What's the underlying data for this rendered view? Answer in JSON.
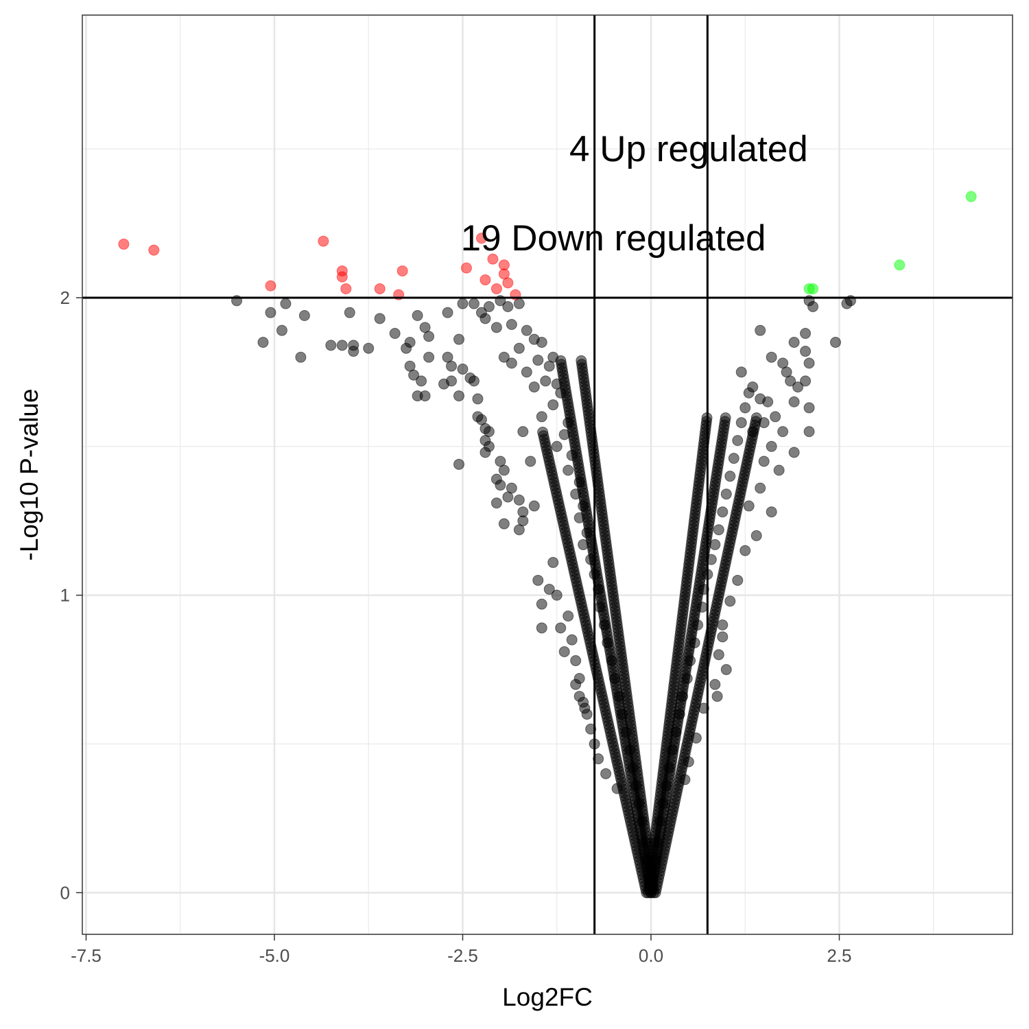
{
  "chart_data": {
    "type": "scatter",
    "title": "",
    "xlabel": "Log2FC",
    "ylabel": "-Log10 P-value",
    "xlim": [
      -7.55,
      4.8
    ],
    "ylim": [
      -0.14,
      2.95
    ],
    "x_ticks": [
      -7.5,
      -5.0,
      -2.5,
      0.0,
      2.5
    ],
    "x_tick_labels": [
      "-7.5",
      "-5.0",
      "-2.5",
      "0.0",
      "2.5"
    ],
    "y_ticks": [
      0,
      1,
      2
    ],
    "y_tick_labels": [
      "0",
      "1",
      "2"
    ],
    "grid": true,
    "legend": "none",
    "thresholds": {
      "log2fc": [
        -0.75,
        0.75
      ],
      "neg_log10_p": 2
    },
    "annotations": [
      {
        "text": "4 Up regulated",
        "x": 0.5,
        "y": 2.5
      },
      {
        "text": "19 Down regulated",
        "x": -0.5,
        "y": 2.2
      }
    ],
    "colors": {
      "down": "#ff0000",
      "up": "#00ff00",
      "ns": "#000000",
      "threshold_line": "#000000"
    },
    "series": [
      {
        "group": "down",
        "points": [
          [
            -7.0,
            2.18
          ],
          [
            -6.6,
            2.16
          ],
          [
            -5.05,
            2.04
          ],
          [
            -4.35,
            2.19
          ],
          [
            -4.1,
            2.09
          ],
          [
            -4.1,
            2.07
          ],
          [
            -4.05,
            2.03
          ],
          [
            -3.6,
            2.03
          ],
          [
            -3.3,
            2.09
          ],
          [
            -3.35,
            2.01
          ],
          [
            -2.45,
            2.1
          ],
          [
            -2.25,
            2.2
          ],
          [
            -2.2,
            2.06
          ],
          [
            -2.1,
            2.13
          ],
          [
            -2.05,
            2.03
          ],
          [
            -1.95,
            2.11
          ],
          [
            -1.95,
            2.08
          ],
          [
            -1.9,
            2.05
          ],
          [
            -1.8,
            2.01
          ]
        ]
      },
      {
        "group": "up",
        "points": [
          [
            4.25,
            2.34
          ],
          [
            3.3,
            2.11
          ],
          [
            2.1,
            2.03
          ],
          [
            2.15,
            2.03
          ]
        ]
      },
      {
        "group": "ns",
        "points": [
          [
            -5.5,
            1.99
          ],
          [
            -5.05,
            1.95
          ],
          [
            -4.85,
            1.98
          ],
          [
            -4.6,
            1.94
          ],
          [
            -4.9,
            1.89
          ],
          [
            -5.15,
            1.85
          ],
          [
            -4.65,
            1.8
          ],
          [
            -4.25,
            1.84
          ],
          [
            -4.1,
            1.84
          ],
          [
            -3.95,
            1.84
          ],
          [
            -3.75,
            1.83
          ],
          [
            -3.95,
            1.82
          ],
          [
            -4.0,
            1.95
          ],
          [
            -3.6,
            1.93
          ],
          [
            -3.4,
            1.88
          ],
          [
            -3.1,
            1.94
          ],
          [
            -3.0,
            1.9
          ],
          [
            -2.95,
            1.87
          ],
          [
            -3.2,
            1.85
          ],
          [
            -2.95,
            1.8
          ],
          [
            -3.25,
            1.83
          ],
          [
            -3.2,
            1.77
          ],
          [
            -3.15,
            1.74
          ],
          [
            -3.05,
            1.72
          ],
          [
            -3.1,
            1.67
          ],
          [
            -3.0,
            1.67
          ],
          [
            -2.7,
            1.95
          ],
          [
            -2.55,
            1.86
          ],
          [
            -2.7,
            1.8
          ],
          [
            -2.65,
            1.77
          ],
          [
            -2.5,
            1.76
          ],
          [
            -2.75,
            1.71
          ],
          [
            -2.65,
            1.72
          ],
          [
            -2.55,
            1.67
          ],
          [
            -2.4,
            1.73
          ],
          [
            -2.35,
            1.72
          ],
          [
            -2.3,
            1.66
          ],
          [
            -2.3,
            1.6
          ],
          [
            -2.25,
            1.59
          ],
          [
            -2.2,
            1.56
          ],
          [
            -2.15,
            1.55
          ],
          [
            -2.2,
            1.52
          ],
          [
            -2.15,
            1.5
          ],
          [
            -2.55,
            1.44
          ],
          [
            -2.2,
            1.48
          ],
          [
            -2.0,
            1.45
          ],
          [
            -1.95,
            1.42
          ],
          [
            -2.05,
            1.39
          ],
          [
            -2.0,
            1.37
          ],
          [
            -1.9,
            1.33
          ],
          [
            -2.05,
            1.31
          ],
          [
            -1.85,
            1.36
          ],
          [
            -1.75,
            1.32
          ],
          [
            -1.7,
            1.28
          ],
          [
            -1.95,
            1.24
          ],
          [
            -1.75,
            1.22
          ],
          [
            -1.7,
            1.25
          ],
          [
            -1.45,
            0.89
          ],
          [
            -1.2,
            0.89
          ],
          [
            -1.5,
            1.05
          ],
          [
            -1.45,
            0.97
          ],
          [
            -1.3,
            1.11
          ],
          [
            -1.35,
            1.02
          ],
          [
            -1.25,
            1.0
          ],
          [
            -1.1,
            0.93
          ],
          [
            -1.05,
            0.85
          ],
          [
            -1.15,
            0.81
          ],
          [
            -1.0,
            0.78
          ],
          [
            -0.95,
            0.72
          ],
          [
            -0.9,
            0.64
          ],
          [
            -0.85,
            0.6
          ],
          [
            -0.8,
            0.55
          ],
          [
            -0.75,
            0.5
          ],
          [
            -0.7,
            0.45
          ],
          [
            -0.6,
            0.4
          ],
          [
            -0.45,
            0.35
          ],
          [
            -2.5,
            1.98
          ],
          [
            -2.35,
            1.98
          ],
          [
            -2.15,
            1.97
          ],
          [
            -2.0,
            1.99
          ],
          [
            -1.9,
            1.97
          ],
          [
            -1.75,
            1.98
          ],
          [
            -2.25,
            1.95
          ],
          [
            -2.2,
            1.93
          ],
          [
            -2.05,
            1.9
          ],
          [
            -1.85,
            1.91
          ],
          [
            -1.65,
            1.89
          ],
          [
            -1.55,
            1.86
          ],
          [
            -1.45,
            1.85
          ],
          [
            -1.3,
            1.8
          ],
          [
            -1.75,
            1.83
          ],
          [
            -1.95,
            1.8
          ],
          [
            -1.85,
            1.78
          ],
          [
            -1.5,
            1.79
          ],
          [
            -1.35,
            1.77
          ],
          [
            -1.65,
            1.75
          ],
          [
            -1.55,
            1.7
          ],
          [
            -1.4,
            1.72
          ],
          [
            -1.25,
            1.71
          ],
          [
            -1.2,
            1.68
          ],
          [
            -1.3,
            1.64
          ],
          [
            -1.1,
            1.58
          ],
          [
            -1.15,
            1.54
          ],
          [
            -1.25,
            1.5
          ],
          [
            -1.05,
            1.47
          ],
          [
            -1.1,
            1.42
          ],
          [
            -0.95,
            1.38
          ],
          [
            -1.0,
            1.34
          ],
          [
            -0.9,
            1.3
          ],
          [
            -0.95,
            1.26
          ],
          [
            -0.85,
            1.21
          ],
          [
            -0.9,
            1.17
          ],
          [
            -0.8,
            1.12
          ],
          [
            -0.75,
            1.07
          ],
          [
            -0.7,
            1.02
          ],
          [
            -0.68,
            0.96
          ],
          [
            -0.62,
            0.9
          ],
          [
            -0.58,
            0.84
          ],
          [
            -0.52,
            0.78
          ],
          [
            -0.48,
            0.72
          ],
          [
            -0.42,
            0.66
          ],
          [
            -0.38,
            0.6
          ],
          [
            -0.33,
            0.54
          ],
          [
            -0.28,
            0.48
          ],
          [
            -0.24,
            0.42
          ],
          [
            -0.2,
            0.36
          ],
          [
            -0.16,
            0.3
          ],
          [
            -0.12,
            0.24
          ],
          [
            -0.08,
            0.17
          ],
          [
            -0.05,
            0.11
          ],
          [
            -0.02,
            0.05
          ],
          [
            0.0,
            0.01
          ],
          [
            0.02,
            0.05
          ],
          [
            0.05,
            0.11
          ],
          [
            0.08,
            0.17
          ],
          [
            0.12,
            0.24
          ],
          [
            0.16,
            0.3
          ],
          [
            0.2,
            0.36
          ],
          [
            0.24,
            0.42
          ],
          [
            0.28,
            0.48
          ],
          [
            0.33,
            0.54
          ],
          [
            0.38,
            0.6
          ],
          [
            0.42,
            0.66
          ],
          [
            0.48,
            0.72
          ],
          [
            0.52,
            0.78
          ],
          [
            0.58,
            0.84
          ],
          [
            0.62,
            0.9
          ],
          [
            0.68,
            0.96
          ],
          [
            0.7,
            1.02
          ],
          [
            0.75,
            1.07
          ],
          [
            0.8,
            1.12
          ],
          [
            0.85,
            1.17
          ],
          [
            0.9,
            1.22
          ],
          [
            0.95,
            1.28
          ],
          [
            1.0,
            1.34
          ],
          [
            1.05,
            1.4
          ],
          [
            1.1,
            1.46
          ],
          [
            1.15,
            1.52
          ],
          [
            1.2,
            1.58
          ],
          [
            1.25,
            1.63
          ],
          [
            1.3,
            1.68
          ],
          [
            1.2,
            1.75
          ],
          [
            1.35,
            1.7
          ],
          [
            1.45,
            1.66
          ],
          [
            1.55,
            1.65
          ],
          [
            1.65,
            1.6
          ],
          [
            1.75,
            1.55
          ],
          [
            1.6,
            1.5
          ],
          [
            1.5,
            1.45
          ],
          [
            1.7,
            1.42
          ],
          [
            1.45,
            1.36
          ],
          [
            1.3,
            1.3
          ],
          [
            1.6,
            1.28
          ],
          [
            1.4,
            1.2
          ],
          [
            1.25,
            1.15
          ],
          [
            1.15,
            1.05
          ],
          [
            1.05,
            0.98
          ],
          [
            0.95,
            0.9
          ],
          [
            0.9,
            0.8
          ],
          [
            0.85,
            0.7
          ],
          [
            0.7,
            0.62
          ],
          [
            0.6,
            0.52
          ],
          [
            0.5,
            0.44
          ],
          [
            0.45,
            0.38
          ],
          [
            1.45,
            1.89
          ],
          [
            1.6,
            1.8
          ],
          [
            1.75,
            1.78
          ],
          [
            1.9,
            1.85
          ],
          [
            1.85,
            1.72
          ],
          [
            1.95,
            1.7
          ],
          [
            2.05,
            1.82
          ],
          [
            2.1,
            1.78
          ],
          [
            2.05,
            1.72
          ],
          [
            1.9,
            1.65
          ],
          [
            2.1,
            1.63
          ],
          [
            2.1,
            1.55
          ],
          [
            1.9,
            1.48
          ],
          [
            2.1,
            1.99
          ],
          [
            2.15,
            1.97
          ],
          [
            2.45,
            1.85
          ],
          [
            2.65,
            1.99
          ],
          [
            2.6,
            1.98
          ],
          [
            2.05,
            1.88
          ],
          [
            1.8,
            1.75
          ],
          [
            -0.88,
            0.62
          ],
          [
            -0.95,
            0.66
          ],
          [
            -1.0,
            0.7
          ],
          [
            0.88,
            0.66
          ],
          [
            1.0,
            0.75
          ],
          [
            0.95,
            0.86
          ],
          [
            -1.55,
            1.3
          ],
          [
            -1.6,
            1.45
          ],
          [
            -1.7,
            1.55
          ],
          [
            -1.45,
            1.6
          ],
          [
            1.35,
            1.55
          ],
          [
            1.5,
            1.58
          ]
        ]
      }
    ]
  }
}
